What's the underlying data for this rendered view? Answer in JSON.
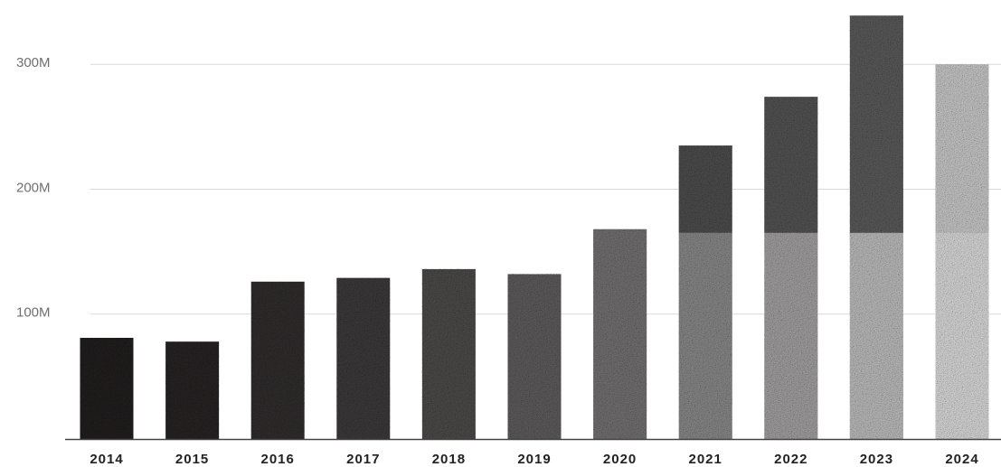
{
  "chart_data": {
    "type": "bar",
    "categories": [
      "2014",
      "2015",
      "2016",
      "2017",
      "2018",
      "2019",
      "2020",
      "2021",
      "2022",
      "2023",
      "2024"
    ],
    "values": [
      81,
      78,
      126,
      129,
      136,
      132,
      168,
      235,
      274,
      339,
      300
    ],
    "title": "",
    "xlabel": "",
    "ylabel": "",
    "ylim": [
      0,
      345
    ],
    "yticks": [
      100,
      200,
      300
    ],
    "ytick_labels": [
      "100M",
      "200M",
      "300M"
    ],
    "grid": true,
    "bar_fill": "photographic texture (desert camp imagery) fading from dark to light",
    "colors": {
      "grid": "#d9d9d9",
      "axis": "#444444",
      "bar_dark": "#231f20",
      "bar_light": "#d8d8d8",
      "tick_text": "#6f6f6f",
      "category_text": "#222222"
    }
  }
}
